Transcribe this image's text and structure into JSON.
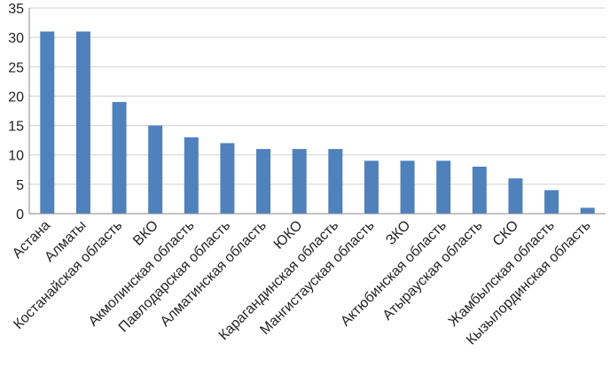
{
  "chart_data": {
    "type": "bar",
    "categories": [
      "Астана",
      "Алматы",
      "Костанайская область",
      "ВКО",
      "Акмолинская область",
      "Павлодарская область",
      "Алматинская область",
      "ЮКО",
      "Карагандинская область",
      "Мангистауская область",
      "ЗКО",
      "Актюбинская область",
      "Атырауская область",
      "СКО",
      "Жамбылская область",
      "Кызылординская область"
    ],
    "values": [
      31,
      31,
      19,
      15,
      13,
      12,
      11,
      11,
      11,
      9,
      9,
      9,
      8,
      6,
      4,
      1
    ],
    "yticks": [
      "0",
      "5",
      "10",
      "15",
      "20",
      "25",
      "30",
      "35"
    ],
    "ylim": [
      0,
      35
    ],
    "grid": true,
    "legend": "none",
    "bar_color": "#4f81bd"
  }
}
